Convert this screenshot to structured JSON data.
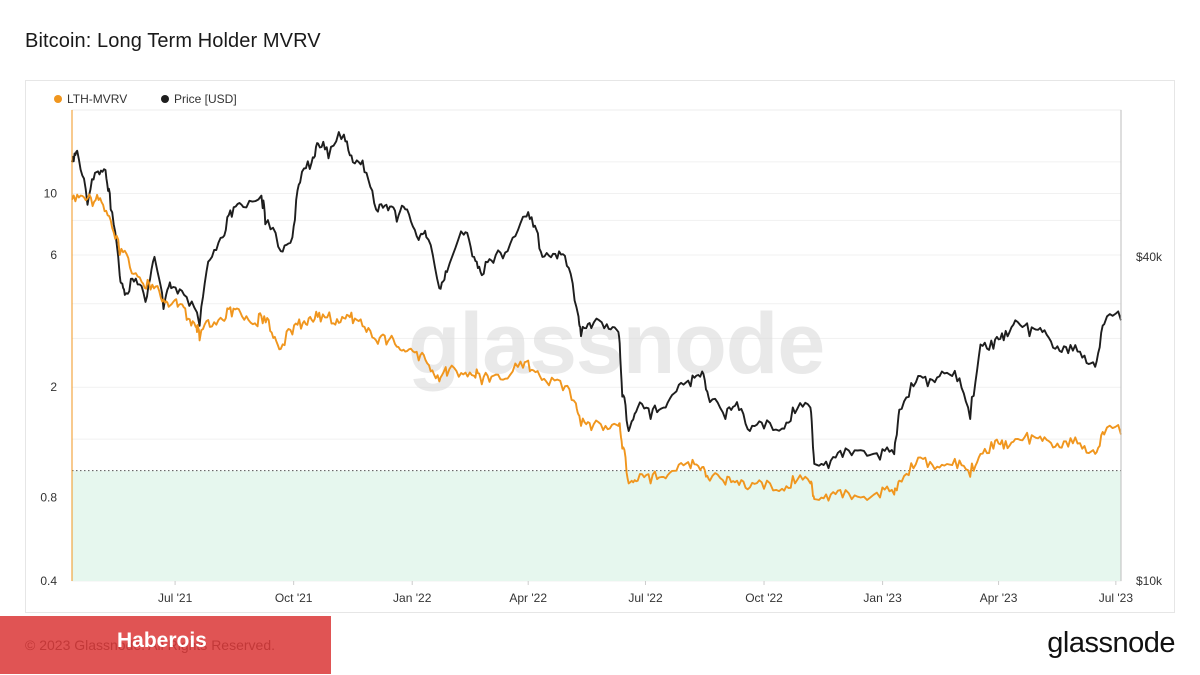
{
  "title": "Bitcoin: Long Term Holder MVRV",
  "watermark": "glassnode",
  "footer": {
    "copyright": "© 2023 Glassnode. All Rights Reserved.",
    "banner_brand": "Haberois",
    "logo": "glassnode"
  },
  "colors": {
    "lth_mvrv": "#f0961e",
    "price": "#1e1e1e",
    "zone_fill": "#e6f7ee",
    "threshold_line": "#555555",
    "banner": "#e05454"
  },
  "chart_data": {
    "type": "line",
    "title": "Bitcoin: Long Term Holder MVRV",
    "legend": {
      "placement": "top-left",
      "entries": [
        "LTH-MVRV",
        "Price [USD]"
      ]
    },
    "x_range": [
      "2021-04-12",
      "2023-07-05"
    ],
    "x_ticks": [
      {
        "date": "2021-07-01",
        "label": "Jul '21"
      },
      {
        "date": "2021-10-01",
        "label": "Oct '21"
      },
      {
        "date": "2022-01-01",
        "label": "Jan '22"
      },
      {
        "date": "2022-04-01",
        "label": "Apr '22"
      },
      {
        "date": "2022-07-01",
        "label": "Jul '22"
      },
      {
        "date": "2022-10-01",
        "label": "Oct '22"
      },
      {
        "date": "2023-01-01",
        "label": "Jan '23"
      },
      {
        "date": "2023-04-01",
        "label": "Apr '23"
      },
      {
        "date": "2023-07-01",
        "label": "Jul '23"
      }
    ],
    "y_left": {
      "scale": "log",
      "range": [
        0.4,
        20
      ],
      "ticks": [
        0.4,
        0.8,
        2,
        6,
        10
      ],
      "tick_labels": [
        "0.4",
        "0.8",
        "2",
        "6",
        "10"
      ]
    },
    "y_right": {
      "scale": "log",
      "range": [
        10000,
        75000
      ],
      "ticks": [
        10000,
        40000
      ],
      "tick_labels": [
        "$10k",
        "$40k"
      ]
    },
    "threshold": {
      "value": 1.0,
      "axis": "left",
      "style": "dotted",
      "fill_below": true
    },
    "grid": true,
    "series": [
      {
        "name": "LTH-MVRV",
        "axis": "left",
        "points": [
          [
            "2021-04-12",
            9.5
          ],
          [
            "2021-04-20",
            9.8
          ],
          [
            "2021-04-28",
            9.0
          ],
          [
            "2021-05-05",
            9.3
          ],
          [
            "2021-05-12",
            8.0
          ],
          [
            "2021-05-19",
            6.0
          ],
          [
            "2021-05-27",
            5.4
          ],
          [
            "2021-06-05",
            4.8
          ],
          [
            "2021-06-12",
            4.5
          ],
          [
            "2021-06-20",
            4.2
          ],
          [
            "2021-06-26",
            3.9
          ],
          [
            "2021-07-03",
            3.9
          ],
          [
            "2021-07-10",
            3.5
          ],
          [
            "2021-07-17",
            3.3
          ],
          [
            "2021-07-20",
            2.95
          ],
          [
            "2021-07-28",
            3.3
          ],
          [
            "2021-08-07",
            3.5
          ],
          [
            "2021-08-14",
            3.6
          ],
          [
            "2021-08-22",
            3.6
          ],
          [
            "2021-09-01",
            3.4
          ],
          [
            "2021-09-07",
            3.4
          ],
          [
            "2021-09-14",
            3.15
          ],
          [
            "2021-09-21",
            2.75
          ],
          [
            "2021-09-30",
            3.1
          ],
          [
            "2021-10-08",
            3.4
          ],
          [
            "2021-10-15",
            3.5
          ],
          [
            "2021-10-22",
            3.45
          ],
          [
            "2021-11-01",
            3.4
          ],
          [
            "2021-11-09",
            3.55
          ],
          [
            "2021-11-16",
            3.4
          ],
          [
            "2021-11-25",
            3.3
          ],
          [
            "2021-12-04",
            2.95
          ],
          [
            "2021-12-12",
            2.85
          ],
          [
            "2021-12-20",
            2.8
          ],
          [
            "2021-12-28",
            2.7
          ],
          [
            "2022-01-06",
            2.5
          ],
          [
            "2022-01-14",
            2.4
          ],
          [
            "2022-01-22",
            2.1
          ],
          [
            "2022-01-28",
            2.2
          ],
          [
            "2022-02-08",
            2.25
          ],
          [
            "2022-02-18",
            2.2
          ],
          [
            "2022-02-24",
            2.05
          ],
          [
            "2022-03-05",
            2.2
          ],
          [
            "2022-03-16",
            2.15
          ],
          [
            "2022-03-28",
            2.35
          ],
          [
            "2022-04-05",
            2.3
          ],
          [
            "2022-04-15",
            2.1
          ],
          [
            "2022-04-28",
            1.95
          ],
          [
            "2022-05-08",
            1.75
          ],
          [
            "2022-05-12",
            1.45
          ],
          [
            "2022-05-20",
            1.4
          ],
          [
            "2022-05-31",
            1.45
          ],
          [
            "2022-06-10",
            1.45
          ],
          [
            "2022-06-13",
            1.2
          ],
          [
            "2022-06-18",
            0.9
          ],
          [
            "2022-06-25",
            0.92
          ],
          [
            "2022-07-05",
            0.9
          ],
          [
            "2022-07-15",
            0.95
          ],
          [
            "2022-07-25",
            1.0
          ],
          [
            "2022-08-05",
            1.02
          ],
          [
            "2022-08-14",
            1.03
          ],
          [
            "2022-08-20",
            0.92
          ],
          [
            "2022-09-01",
            0.89
          ],
          [
            "2022-09-10",
            0.92
          ],
          [
            "2022-09-20",
            0.87
          ],
          [
            "2022-10-01",
            0.86
          ],
          [
            "2022-10-15",
            0.86
          ],
          [
            "2022-10-25",
            0.9
          ],
          [
            "2022-11-06",
            0.9
          ],
          [
            "2022-11-09",
            0.79
          ],
          [
            "2022-11-20",
            0.78
          ],
          [
            "2022-12-01",
            0.8
          ],
          [
            "2022-12-15",
            0.8
          ],
          [
            "2022-12-30",
            0.8
          ],
          [
            "2023-01-10",
            0.82
          ],
          [
            "2023-01-14",
            0.92
          ],
          [
            "2023-01-25",
            1.02
          ],
          [
            "2023-02-05",
            1.03
          ],
          [
            "2023-02-16",
            1.05
          ],
          [
            "2023-02-28",
            1.02
          ],
          [
            "2023-03-10",
            0.95
          ],
          [
            "2023-03-18",
            1.15
          ],
          [
            "2023-03-28",
            1.2
          ],
          [
            "2023-04-05",
            1.2
          ],
          [
            "2023-04-14",
            1.3
          ],
          [
            "2023-04-25",
            1.25
          ],
          [
            "2023-05-05",
            1.28
          ],
          [
            "2023-05-15",
            1.22
          ],
          [
            "2023-05-25",
            1.22
          ],
          [
            "2023-06-05",
            1.2
          ],
          [
            "2023-06-15",
            1.15
          ],
          [
            "2023-06-22",
            1.35
          ],
          [
            "2023-07-05",
            1.35
          ]
        ]
      },
      {
        "name": "Price [USD]",
        "axis": "right",
        "points": [
          [
            "2021-04-12",
            60000
          ],
          [
            "2021-04-16",
            63000
          ],
          [
            "2021-04-24",
            50000
          ],
          [
            "2021-05-01",
            57500
          ],
          [
            "2021-05-08",
            58000
          ],
          [
            "2021-05-12",
            49000
          ],
          [
            "2021-05-19",
            37000
          ],
          [
            "2021-05-23",
            34000
          ],
          [
            "2021-05-30",
            36000
          ],
          [
            "2021-06-08",
            33000
          ],
          [
            "2021-06-15",
            40000
          ],
          [
            "2021-06-22",
            32000
          ],
          [
            "2021-06-28",
            35000
          ],
          [
            "2021-07-08",
            34000
          ],
          [
            "2021-07-20",
            29800
          ],
          [
            "2021-07-28",
            39500
          ],
          [
            "2021-08-07",
            43500
          ],
          [
            "2021-08-14",
            47500
          ],
          [
            "2021-08-23",
            49500
          ],
          [
            "2021-09-06",
            52000
          ],
          [
            "2021-09-09",
            46000
          ],
          [
            "2021-09-21",
            41000
          ],
          [
            "2021-09-30",
            43500
          ],
          [
            "2021-10-06",
            55000
          ],
          [
            "2021-10-15",
            60000
          ],
          [
            "2021-10-20",
            65000
          ],
          [
            "2021-10-28",
            61000
          ],
          [
            "2021-11-09",
            67500
          ],
          [
            "2021-11-16",
            60000
          ],
          [
            "2021-11-25",
            57500
          ],
          [
            "2021-12-04",
            49000
          ],
          [
            "2021-12-12",
            50000
          ],
          [
            "2021-12-20",
            46500
          ],
          [
            "2021-12-28",
            49000
          ],
          [
            "2022-01-06",
            43000
          ],
          [
            "2022-01-12",
            43500
          ],
          [
            "2022-01-22",
            35000
          ],
          [
            "2022-01-28",
            37500
          ],
          [
            "2022-02-10",
            44000
          ],
          [
            "2022-02-18",
            40000
          ],
          [
            "2022-02-24",
            37000
          ],
          [
            "2022-03-05",
            39000
          ],
          [
            "2022-03-16",
            41000
          ],
          [
            "2022-03-28",
            47500
          ],
          [
            "2022-04-05",
            45500
          ],
          [
            "2022-04-12",
            40000
          ],
          [
            "2022-04-22",
            40500
          ],
          [
            "2022-05-01",
            38500
          ],
          [
            "2022-05-10",
            31000
          ],
          [
            "2022-05-12",
            28500
          ],
          [
            "2022-05-20",
            29500
          ],
          [
            "2022-06-01",
            30000
          ],
          [
            "2022-06-10",
            29000
          ],
          [
            "2022-06-13",
            22000
          ],
          [
            "2022-06-18",
            19000
          ],
          [
            "2022-06-25",
            21000
          ],
          [
            "2022-07-05",
            20000
          ],
          [
            "2022-07-15",
            21000
          ],
          [
            "2022-07-25",
            22500
          ],
          [
            "2022-08-05",
            23000
          ],
          [
            "2022-08-14",
            24500
          ],
          [
            "2022-08-20",
            21500
          ],
          [
            "2022-09-01",
            20000
          ],
          [
            "2022-09-10",
            21500
          ],
          [
            "2022-09-20",
            19000
          ],
          [
            "2022-10-01",
            19200
          ],
          [
            "2022-10-15",
            19200
          ],
          [
            "2022-10-25",
            20500
          ],
          [
            "2022-11-06",
            21000
          ],
          [
            "2022-11-09",
            16500
          ],
          [
            "2022-11-20",
            16200
          ],
          [
            "2022-12-01",
            17000
          ],
          [
            "2022-12-15",
            17500
          ],
          [
            "2022-12-30",
            16800
          ],
          [
            "2023-01-10",
            17200
          ],
          [
            "2023-01-14",
            20800
          ],
          [
            "2023-01-25",
            23000
          ],
          [
            "2023-02-05",
            23000
          ],
          [
            "2023-02-16",
            24500
          ],
          [
            "2023-02-28",
            23500
          ],
          [
            "2023-03-10",
            20000
          ],
          [
            "2023-03-18",
            27500
          ],
          [
            "2023-03-28",
            27000
          ],
          [
            "2023-04-05",
            28000
          ],
          [
            "2023-04-14",
            30500
          ],
          [
            "2023-04-25",
            28500
          ],
          [
            "2023-05-05",
            29000
          ],
          [
            "2023-05-15",
            27000
          ],
          [
            "2023-05-25",
            26500
          ],
          [
            "2023-06-05",
            26000
          ],
          [
            "2023-06-15",
            25000
          ],
          [
            "2023-06-22",
            30000
          ],
          [
            "2023-07-05",
            30500
          ]
        ]
      }
    ]
  }
}
